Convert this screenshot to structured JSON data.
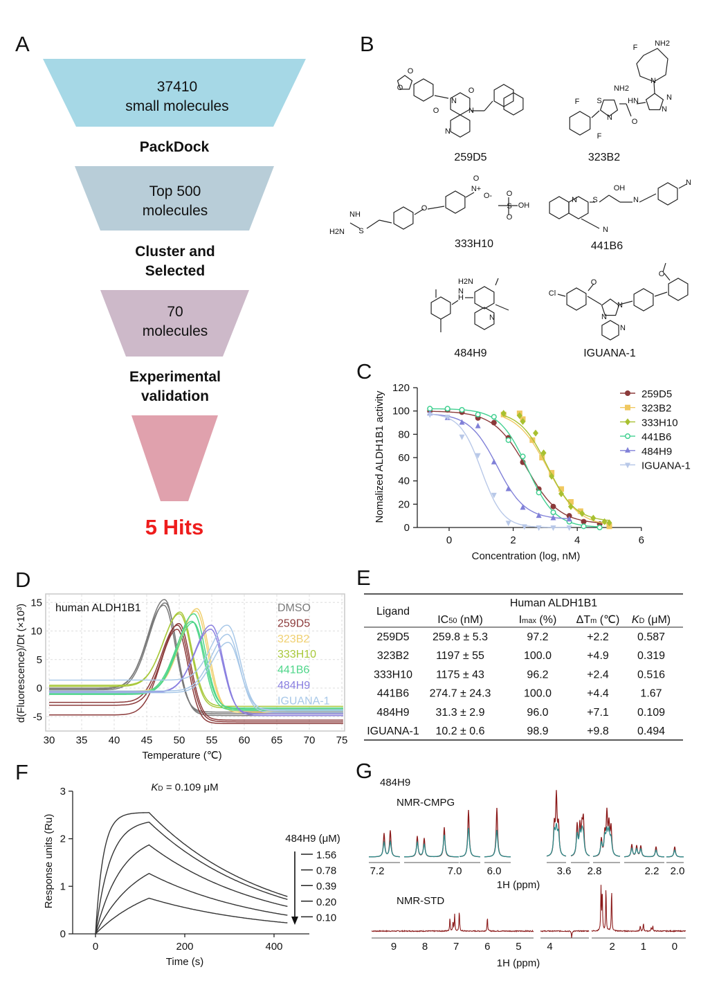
{
  "panels": {
    "A": "A",
    "B": "B",
    "C": "C",
    "D": "D",
    "E": "E",
    "F": "F",
    "G": "G"
  },
  "funnel": {
    "stage1": [
      "37410",
      "small molecules"
    ],
    "step1": "PackDock",
    "stage2": [
      "Top 500",
      "molecules"
    ],
    "step2": [
      "Cluster and",
      "Selected"
    ],
    "stage3": [
      "70",
      "molecules"
    ],
    "step3": [
      "Experimental",
      "validation"
    ],
    "result": "5 Hits",
    "colors": [
      "#a6d8e6",
      "#b8cdd8",
      "#cdb9c9",
      "#e0a1ad"
    ],
    "result_color": "#ee1c1c"
  },
  "structures": [
    {
      "name": "259D5",
      "atoms": [
        "O",
        "O",
        "N",
        "O",
        "O",
        "N",
        "N"
      ]
    },
    {
      "name": "323B2",
      "atoms": [
        "F",
        "NH2",
        "N",
        "N",
        "N",
        "HN",
        "O",
        "NH2",
        "S",
        "N",
        "F",
        "F"
      ]
    },
    {
      "name": "333H10",
      "atoms": [
        "NH",
        "H2N",
        "S",
        "O",
        "N+",
        "O",
        "O-",
        "S",
        "OH",
        "O",
        "O"
      ]
    },
    {
      "name": "441B6",
      "atoms": [
        "N",
        "S",
        "OH",
        "N",
        "N",
        "N"
      ]
    },
    {
      "name": "484H9",
      "atoms": [
        "H2N",
        "H",
        "N",
        "N"
      ]
    },
    {
      "name": "IGUANA-1",
      "atoms": [
        "Cl",
        "O",
        "N",
        "N",
        "N",
        "O"
      ]
    }
  ],
  "chart_data": [
    {
      "panel": "C",
      "type": "scatter",
      "xlabel": "Concentration (log, nM)",
      "ylabel": "Nomalized ALDH1B1 activity",
      "xlim": [
        -1,
        6
      ],
      "ylim": [
        0,
        120
      ],
      "xticks": [
        "0",
        "2",
        "4",
        "6"
      ],
      "yticks": [
        "0",
        "20",
        "40",
        "60",
        "80",
        "100",
        "120"
      ],
      "legend": "top-right",
      "series": [
        {
          "name": "259D5",
          "color": "#8b3a3a",
          "marker": "circle",
          "x": [
            -0.6,
            -0.05,
            0.4,
            0.9,
            1.4,
            1.85,
            2.3,
            2.8,
            3.25,
            3.75,
            4.2,
            4.7
          ],
          "y": [
            100,
            101,
            99,
            94,
            90,
            77,
            56,
            33,
            18,
            10,
            5,
            3
          ],
          "fit": {
            "top": 100,
            "bottom": 3,
            "log_ic50": 2.41,
            "hill": 0.85
          }
        },
        {
          "name": "323B2",
          "color": "#f0c860",
          "marker": "square",
          "x": [
            1.7,
            2.2,
            2.3,
            2.6,
            2.9,
            3.2,
            3.5,
            3.8,
            4.1,
            5.0
          ],
          "y": [
            97,
            98,
            93,
            75,
            60,
            47,
            33,
            22,
            14,
            1
          ],
          "fit": {
            "top": 100,
            "bottom": 1,
            "log_ic50": 3.08,
            "hill": 0.9
          }
        },
        {
          "name": "333H10",
          "color": "#a8c030",
          "marker": "diamond",
          "x": [
            1.7,
            2.2,
            2.3,
            2.7,
            2.95,
            3.2,
            3.5,
            3.8,
            4.15,
            4.5,
            4.85,
            5.0
          ],
          "y": [
            98,
            96,
            91,
            81,
            64,
            44,
            29,
            18,
            12,
            8,
            5,
            4
          ],
          "fit": {
            "top": 100,
            "bottom": 5,
            "log_ic50": 3.07,
            "hill": 1.0
          }
        },
        {
          "name": "441B6",
          "color": "#40d090",
          "marker": "open-circle",
          "x": [
            -0.6,
            -0.05,
            0.4,
            0.9,
            1.4,
            1.85,
            2.3,
            2.8,
            3.25,
            3.75,
            4.2,
            4.7
          ],
          "y": [
            102,
            102,
            101,
            97,
            95,
            75,
            61,
            30,
            13,
            5,
            1,
            0
          ],
          "fit": {
            "top": 102,
            "bottom": 0,
            "log_ic50": 2.44,
            "hill": 1.0
          }
        },
        {
          "name": "484H9",
          "color": "#8080d8",
          "marker": "triangle-up",
          "x": [
            -0.6,
            -0.05,
            0.4,
            0.9,
            1.4,
            1.85,
            2.3,
            2.8,
            3.25,
            3.75
          ],
          "y": [
            98,
            94,
            90,
            87,
            56,
            33,
            17,
            10,
            8,
            7
          ],
          "fit": {
            "top": 98,
            "bottom": 7,
            "log_ic50": 1.5,
            "hill": 1.0
          }
        },
        {
          "name": "IGUANA-1",
          "color": "#b8c8e8",
          "marker": "triangle-down",
          "x": [
            -0.6,
            -0.05,
            0.4,
            0.9,
            1.4,
            1.85,
            2.35,
            2.8,
            3.25,
            3.75
          ],
          "y": [
            97,
            95,
            78,
            62,
            28,
            4,
            1,
            0,
            0,
            0
          ],
          "fit": {
            "top": 98,
            "bottom": 0,
            "log_ic50": 1.01,
            "hill": 1.3
          }
        }
      ]
    },
    {
      "panel": "D",
      "type": "line",
      "title": "human ALDH1B1",
      "xlabel": "Temperature (℃)",
      "ylabel": "d(Fluorescence)/Dt (×10³)",
      "xlim": [
        29.5,
        75.5
      ],
      "ylim": [
        -7.5,
        16.5
      ],
      "grid": true,
      "legend": "top-right",
      "xticks": [
        "30",
        "35",
        "40",
        "45",
        "50",
        "55",
        "60",
        "65",
        "70",
        "75"
      ],
      "yticks": [
        "-5",
        "0",
        "5",
        "10",
        "15"
      ],
      "series": [
        {
          "name": "DMSO",
          "color": "#7a7a7a",
          "replicates": [
            {
              "peak_temp": 47.8,
              "peak": 15.5,
              "pre": 0,
              "post": -4.5
            },
            {
              "peak_temp": 47.9,
              "peak": 14.9,
              "pre": -0.3,
              "post": -4.8
            },
            {
              "peak_temp": 47.7,
              "peak": 14.5,
              "pre": -0.1,
              "post": -4.2
            }
          ]
        },
        {
          "name": "259D5",
          "color": "#8b3a3a",
          "replicates": [
            {
              "peak_temp": 50,
              "peak": 11.3,
              "pre": -3,
              "post": -5.6
            },
            {
              "peak_temp": 49.8,
              "peak": 11,
              "pre": -2.5,
              "post": -5.9
            },
            {
              "peak_temp": 49.7,
              "peak": 10.3,
              "pre": -4.7,
              "post": -6.2
            }
          ]
        },
        {
          "name": "323B2",
          "color": "#f0d070",
          "replicates": [
            {
              "peak_temp": 52.8,
              "peak": 13.9,
              "pre": -0.5,
              "post": -4.3
            },
            {
              "peak_temp": 52.6,
              "peak": 13.5,
              "pre": -0.7,
              "post": -4
            }
          ]
        },
        {
          "name": "333H10",
          "color": "#a8c83a",
          "replicates": [
            {
              "peak_temp": 50.2,
              "peak": 13.3,
              "pre": 0.5,
              "post": -3.2
            },
            {
              "peak_temp": 50.1,
              "peak": 13,
              "pre": 0.3,
              "post": -3.5
            }
          ]
        },
        {
          "name": "441B6",
          "color": "#4fd68a",
          "replicates": [
            {
              "peak_temp": 52.3,
              "peak": 13,
              "pre": -1,
              "post": -3.7
            },
            {
              "peak_temp": 52,
              "peak": 11.7,
              "pre": -0.9,
              "post": -3.9
            },
            {
              "peak_temp": 52.2,
              "peak": 11.5,
              "pre": -1.1,
              "post": -3.5
            }
          ]
        },
        {
          "name": "484H9",
          "color": "#8a7fe0",
          "replicates": [
            {
              "peak_temp": 55,
              "peak": 11,
              "pre": -0.7,
              "post": -4.8
            },
            {
              "peak_temp": 54.9,
              "peak": 10.3,
              "pre": -0.8,
              "post": -4.5
            }
          ]
        },
        {
          "name": "IGUANA-1",
          "color": "#a8c8e8",
          "replicates": [
            {
              "peak_temp": 57.5,
              "peak": 11,
              "pre": 1.4,
              "post": -4
            },
            {
              "peak_temp": 57.5,
              "peak": 9.4,
              "pre": -0.5,
              "post": -4.3
            },
            {
              "peak_temp": 57.6,
              "peak": 8,
              "pre": -0.8,
              "post": -3.8
            }
          ]
        }
      ]
    },
    {
      "panel": "E",
      "type": "table",
      "group_header": "Human ALDH1B1",
      "col_ligand": "Ligand",
      "cols": [
        {
          "main": "IC",
          "sub": "50",
          "unit": " (nM)"
        },
        {
          "main": "I",
          "sub": "max",
          "unit": " (%)"
        },
        {
          "main": "ΔT",
          "sub": "m",
          "unit": " (℃)"
        },
        {
          "main": "K",
          "sub": "D",
          "unit": " (μM)"
        }
      ],
      "rows": [
        [
          "259D5",
          "259.8 ± 5.3",
          "97.2",
          "+2.2",
          "0.587"
        ],
        [
          "323B2",
          "1197 ± 55",
          "100.0",
          "+4.9",
          "0.319"
        ],
        [
          "333H10",
          "1175 ± 43",
          "96.2",
          "+2.4",
          "0.516"
        ],
        [
          "441B6",
          "274.7 ± 24.3",
          "100.0",
          "+4.4",
          "1.67"
        ],
        [
          "484H9",
          "31.3 ± 2.9",
          "96.0",
          "+7.1",
          "0.109"
        ],
        [
          "IGUANA-1",
          "10.2 ± 0.6",
          "98.9",
          "+9.8",
          "0.494"
        ]
      ]
    },
    {
      "panel": "F",
      "type": "line",
      "title": {
        "k": "K",
        "sub": "D",
        "rest": " = 0.109 μM"
      },
      "xlabel": "Time (s)",
      "ylabel": "Response units (Ru)",
      "xticks": [
        "0",
        "200",
        "400"
      ],
      "yticks": [
        "0",
        "1",
        "2",
        "3"
      ],
      "xlim": [
        -50,
        480
      ],
      "ylim": [
        0,
        3
      ],
      "legend_title": "484H9 (μM)",
      "legend": "right",
      "association_end_s": 120,
      "dissociation_end_s": 430,
      "series": [
        {
          "name": "1.56",
          "conc": 1.56,
          "response_at_120s": 2.55
        },
        {
          "name": "0.78",
          "conc": 0.78,
          "response_at_120s": 2.35
        },
        {
          "name": "0.39",
          "conc": 0.39,
          "response_at_120s": 1.87
        },
        {
          "name": "0.20",
          "conc": 0.2,
          "response_at_120s": 1.27
        },
        {
          "name": "0.10",
          "conc": 0.1,
          "response_at_120s": 0.75
        }
      ],
      "color": "#333333"
    },
    {
      "panel": "G",
      "type": "line",
      "compound": "484H9",
      "cmpg": {
        "label": "NMR-CMPG",
        "xticks": [
          "7.2",
          "7.0",
          "6.0",
          "3.6",
          "2.8",
          "2.2",
          "2.0"
        ],
        "xlabel": "1H (ppm)",
        "colors": [
          "#8b1a1a",
          "#2a8a8a"
        ]
      },
      "std": {
        "label": "NMR-STD",
        "xticks": [
          "9",
          "8",
          "7",
          "6",
          "5",
          "4",
          "2",
          "1",
          "0"
        ],
        "xlabel": "1H (ppm)",
        "color": "#8b1a1a",
        "peaks_ppm": [
          7.2,
          7.1,
          7.05,
          6.9,
          6.0,
          3.3,
          2.36,
          2.32,
          2.2,
          2.02,
          1.1,
          1.0,
          0.75,
          0.7
        ],
        "relative_intensity": [
          20,
          14,
          25,
          30,
          20,
          -10,
          63,
          60,
          65,
          63,
          8,
          12,
          5,
          8
        ]
      }
    }
  ]
}
